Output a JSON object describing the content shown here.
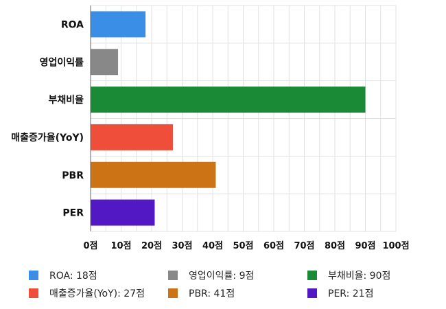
{
  "chart_data": {
    "type": "bar",
    "orientation": "horizontal",
    "categories": [
      "ROA",
      "영업이익률",
      "부채비율",
      "매출증가율(YoY)",
      "PBR",
      "PER"
    ],
    "values": [
      18,
      9,
      90,
      27,
      41,
      21
    ],
    "colors": [
      "#3a8ee6",
      "#888888",
      "#1a8a36",
      "#ef4f3a",
      "#cc7316",
      "#5218c4"
    ],
    "xlim": [
      0,
      100
    ],
    "xticks": [
      0,
      10,
      20,
      30,
      40,
      50,
      60,
      70,
      80,
      90,
      100
    ],
    "tick_suffix": "점",
    "grid": true,
    "legend": {
      "placement": "bottom",
      "entries": [
        "ROA: 18점",
        "영업이익률: 9점",
        "부채비율: 90점",
        "매출증가율(YoY): 27점",
        "PBR: 41점",
        "PER: 21점"
      ]
    }
  }
}
